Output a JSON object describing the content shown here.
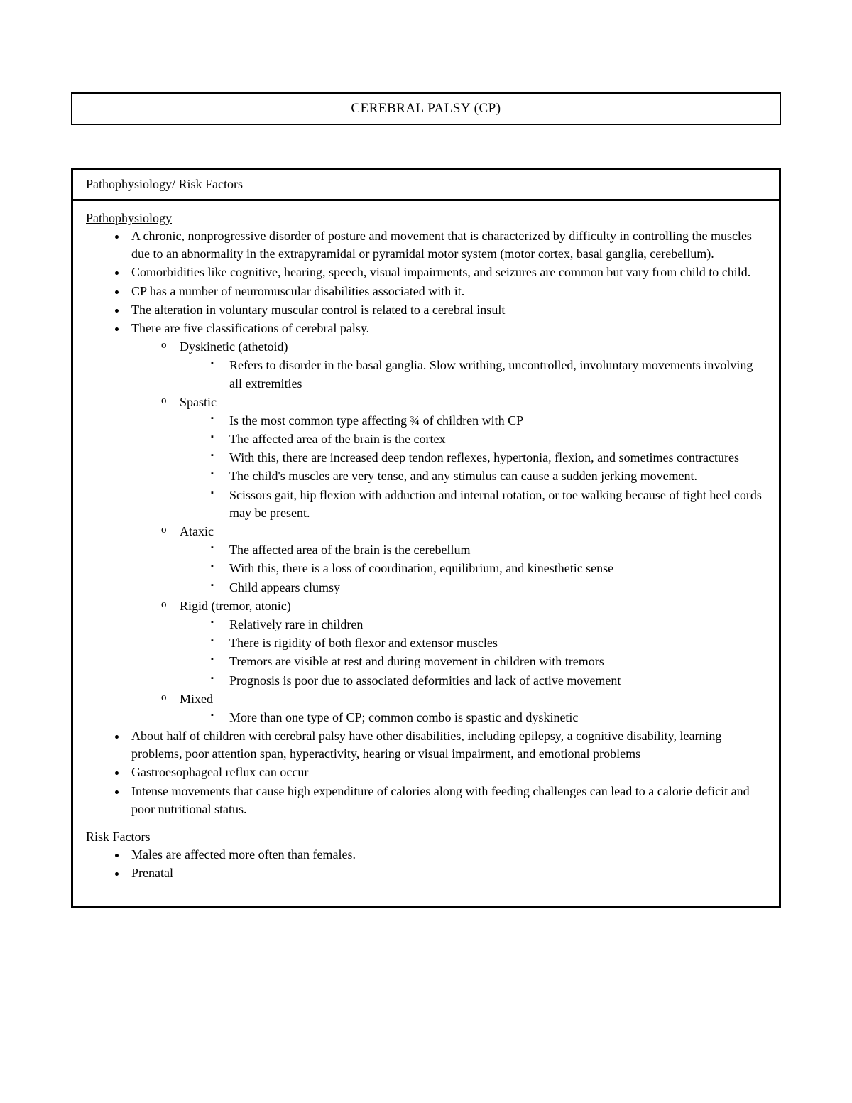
{
  "title": "CEREBRAL PALSY (CP)",
  "subtitle": "Pathophysiology/ Risk Factors",
  "sections": [
    {
      "heading": "Pathophysiology",
      "items": [
        {
          "text": "A chronic, nonprogressive disorder of posture and movement that is characterized by difficulty in controlling the muscles due to an abnormality in the extrapyramidal or pyramidal motor system (motor cortex, basal ganglia, cerebellum)."
        },
        {
          "text": "Comorbidities like cognitive, hearing, speech, visual impairments, and seizures are common but vary from child to child."
        },
        {
          "text": "CP has a number of neuromuscular disabilities associated with it."
        },
        {
          "text": "The alteration in voluntary muscular control is related to a cerebral insult"
        },
        {
          "text": "There are five classifications of cerebral palsy.",
          "children": [
            {
              "text": "Dyskinetic (athetoid)",
              "children": [
                {
                  "text": "Refers to disorder in the basal ganglia. Slow writhing, uncontrolled, involuntary movements involving all extremities"
                }
              ]
            },
            {
              "text": "Spastic",
              "children": [
                {
                  "text": "Is the most common type affecting ¾ of children with CP"
                },
                {
                  "text": "The affected area of the brain is the cortex"
                },
                {
                  "text": "With this, there are increased deep tendon reflexes, hypertonia, flexion, and sometimes contractures"
                },
                {
                  "text": "The child's muscles are very tense, and any stimulus can cause a sudden jerking movement."
                },
                {
                  "text": "Scissors gait, hip flexion with adduction and internal rotation, or toe walking because of tight heel cords may be present."
                }
              ]
            },
            {
              "text": "Ataxic",
              "children": [
                {
                  "text": "The affected area of the brain is the cerebellum"
                },
                {
                  "text": "With this, there is a loss of coordination, equilibrium, and kinesthetic sense"
                },
                {
                  "text": "Child appears clumsy"
                }
              ]
            },
            {
              "text": "Rigid (tremor, atonic)",
              "children": [
                {
                  "text": "Relatively rare in children"
                },
                {
                  "text": "There is rigidity of both flexor and extensor muscles"
                },
                {
                  "text": "Tremors are visible at rest and during movement in children with tremors"
                },
                {
                  "text": "Prognosis is poor due to associated deformities and lack of active movement"
                }
              ]
            },
            {
              "text": "Mixed",
              "children": [
                {
                  "text": "More than one type of CP; common combo is spastic and dyskinetic"
                }
              ]
            }
          ]
        },
        {
          "text": "About half of children with cerebral palsy have other disabilities, including epilepsy, a cognitive disability, learning problems, poor attention span, hyperactivity, hearing or visual impairment, and emotional problems"
        },
        {
          "text": "Gastroesophageal reflux can occur"
        },
        {
          "text": "Intense movements that cause high expenditure of calories along with feeding challenges can lead to a calorie deficit and poor nutritional status."
        }
      ]
    },
    {
      "heading": "Risk Factors",
      "items": [
        {
          "text": "Males are affected more often than females."
        },
        {
          "text": " Prenatal"
        }
      ]
    }
  ]
}
